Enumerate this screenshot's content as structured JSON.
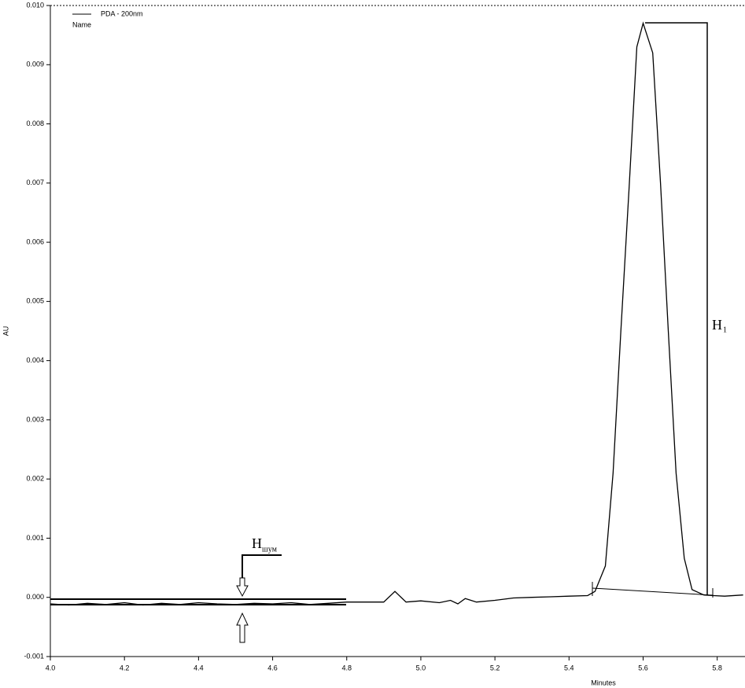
{
  "chart_data": {
    "type": "line",
    "legend_title": "Name",
    "xlabel": "Minutes",
    "ylabel": "AU",
    "annotations": [
      {
        "base": "H",
        "sub": "1"
      },
      {
        "base": "H",
        "sub": "шум"
      }
    ],
    "x": [
      4.0,
      4.05,
      4.1,
      4.15,
      4.2,
      4.25,
      4.3,
      4.35,
      4.4,
      4.45,
      4.5,
      4.55,
      4.6,
      4.65,
      4.7,
      4.75,
      4.8,
      4.85,
      4.9,
      4.93,
      4.96,
      5.0,
      5.05,
      5.08,
      5.1,
      5.12,
      5.15,
      5.2,
      5.25,
      5.3,
      5.35,
      5.4,
      5.45,
      5.47,
      5.498,
      5.519,
      5.54,
      5.562,
      5.583,
      5.6,
      5.626,
      5.647,
      5.668,
      5.689,
      5.711,
      5.732,
      5.764,
      5.79,
      5.82,
      5.87
    ],
    "series": [
      {
        "name": "PDA - 200nm",
        "color": "#000000",
        "values": [
          -0.00011,
          -0.00013,
          -0.0001,
          -0.00012,
          -9e-05,
          -0.00013,
          -0.0001,
          -0.00012,
          -9e-05,
          -0.00011,
          -0.00012,
          -0.0001,
          -0.00011,
          -9e-05,
          -0.00012,
          -0.0001,
          -8e-05,
          -8e-05,
          -8e-05,
          0.0001,
          -8e-05,
          -6e-05,
          -9e-05,
          -5e-05,
          -0.00011,
          -2e-05,
          -8e-05,
          -5e-05,
          -1e-05,
          0.0,
          1e-05,
          2e-05,
          3e-05,
          0.0001,
          0.00053,
          0.0021,
          0.0045,
          0.0069,
          0.0093,
          0.0097,
          0.0092,
          0.007,
          0.0045,
          0.0021,
          0.00066,
          0.00013,
          4e-05,
          3e-05,
          2e-05,
          4e-05
        ]
      }
    ],
    "xlim": [
      4.0,
      5.875
    ],
    "ylim": [
      -0.001,
      0.01
    ],
    "xticks": [
      {
        "value": 4.0,
        "label": "4.0"
      },
      4.2,
      4.4,
      4.6,
      4.8,
      {
        "value": 5.0,
        "label": "5.0"
      },
      5.2,
      5.4,
      5.6,
      5.8
    ],
    "yticks": [
      {
        "value": -0.001,
        "label": "-0.001"
      },
      {
        "value": 0.0,
        "label": "0.000"
      },
      {
        "value": 0.001,
        "label": "0.001"
      },
      {
        "value": 0.002,
        "label": "0.002"
      },
      {
        "value": 0.003,
        "label": "0.003"
      },
      {
        "value": 0.004,
        "label": "0.004"
      },
      {
        "value": 0.005,
        "label": "0.005"
      },
      {
        "value": 0.006,
        "label": "0.006"
      },
      {
        "value": 0.007,
        "label": "0.007"
      },
      {
        "value": 0.008,
        "label": "0.008"
      },
      {
        "value": 0.009,
        "label": "0.009"
      },
      {
        "value": 0.01,
        "label": "0.010"
      }
    ]
  }
}
